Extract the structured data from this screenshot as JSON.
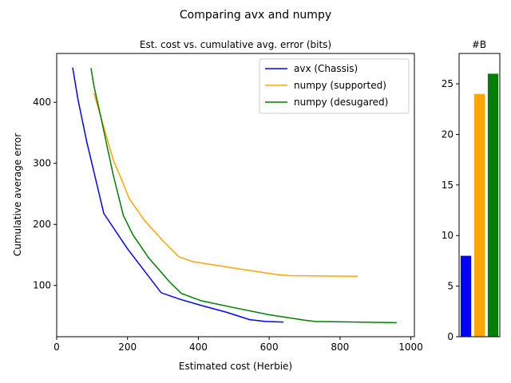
{
  "figure": {
    "suptitle": "Comparing avx and numpy"
  },
  "chart_data": [
    {
      "type": "line",
      "title": "Est. cost vs. cumulative avg. error (bits)",
      "xlabel": "Estimated cost (Herbie)",
      "ylabel": "Cumulative average error",
      "xlim": [
        0,
        1010
      ],
      "ylim": [
        16,
        480
      ],
      "xticks": [
        0,
        200,
        400,
        600,
        800,
        1000
      ],
      "yticks": [
        100,
        200,
        300,
        400
      ],
      "legend_position": "top-right",
      "series": [
        {
          "name": "avx (Chassis)",
          "color": "#0000ff",
          "points": [
            [
              45,
              457
            ],
            [
              60,
              405
            ],
            [
              85,
              335
            ],
            [
              133,
              218
            ],
            [
              200,
              160
            ],
            [
              295,
              88
            ],
            [
              350,
              77
            ],
            [
              410,
              67
            ],
            [
              480,
              56
            ],
            [
              545,
              44
            ],
            [
              590,
              41
            ],
            [
              640,
              40
            ]
          ]
        },
        {
          "name": "numpy (supported)",
          "color": "#ffa500",
          "points": [
            [
              105,
              415
            ],
            [
              160,
              305
            ],
            [
              180,
              278
            ],
            [
              205,
              242
            ],
            [
              250,
              205
            ],
            [
              300,
              173
            ],
            [
              345,
              147
            ],
            [
              385,
              139
            ],
            [
              450,
              133
            ],
            [
              540,
              125
            ],
            [
              620,
              118
            ],
            [
              660,
              116
            ],
            [
              850,
              115
            ]
          ]
        },
        {
          "name": "numpy (desugared)",
          "color": "#008000",
          "points": [
            [
              97,
              456
            ],
            [
              105,
              427
            ],
            [
              125,
              375
            ],
            [
              160,
              280
            ],
            [
              188,
              215
            ],
            [
              215,
              183
            ],
            [
              260,
              145
            ],
            [
              320,
              105
            ],
            [
              352,
              87
            ],
            [
              408,
              75
            ],
            [
              480,
              66
            ],
            [
              600,
              52
            ],
            [
              700,
              43
            ],
            [
              730,
              41
            ],
            [
              960,
              39
            ]
          ]
        }
      ]
    },
    {
      "type": "bar",
      "title": "#B",
      "ylim": [
        0,
        28
      ],
      "yticks": [
        0,
        5,
        10,
        15,
        20,
        25
      ],
      "series": [
        {
          "color": "#0000ff",
          "value": 8
        },
        {
          "color": "#ffa500",
          "value": 24
        },
        {
          "color": "#008000",
          "value": 26
        }
      ]
    }
  ]
}
